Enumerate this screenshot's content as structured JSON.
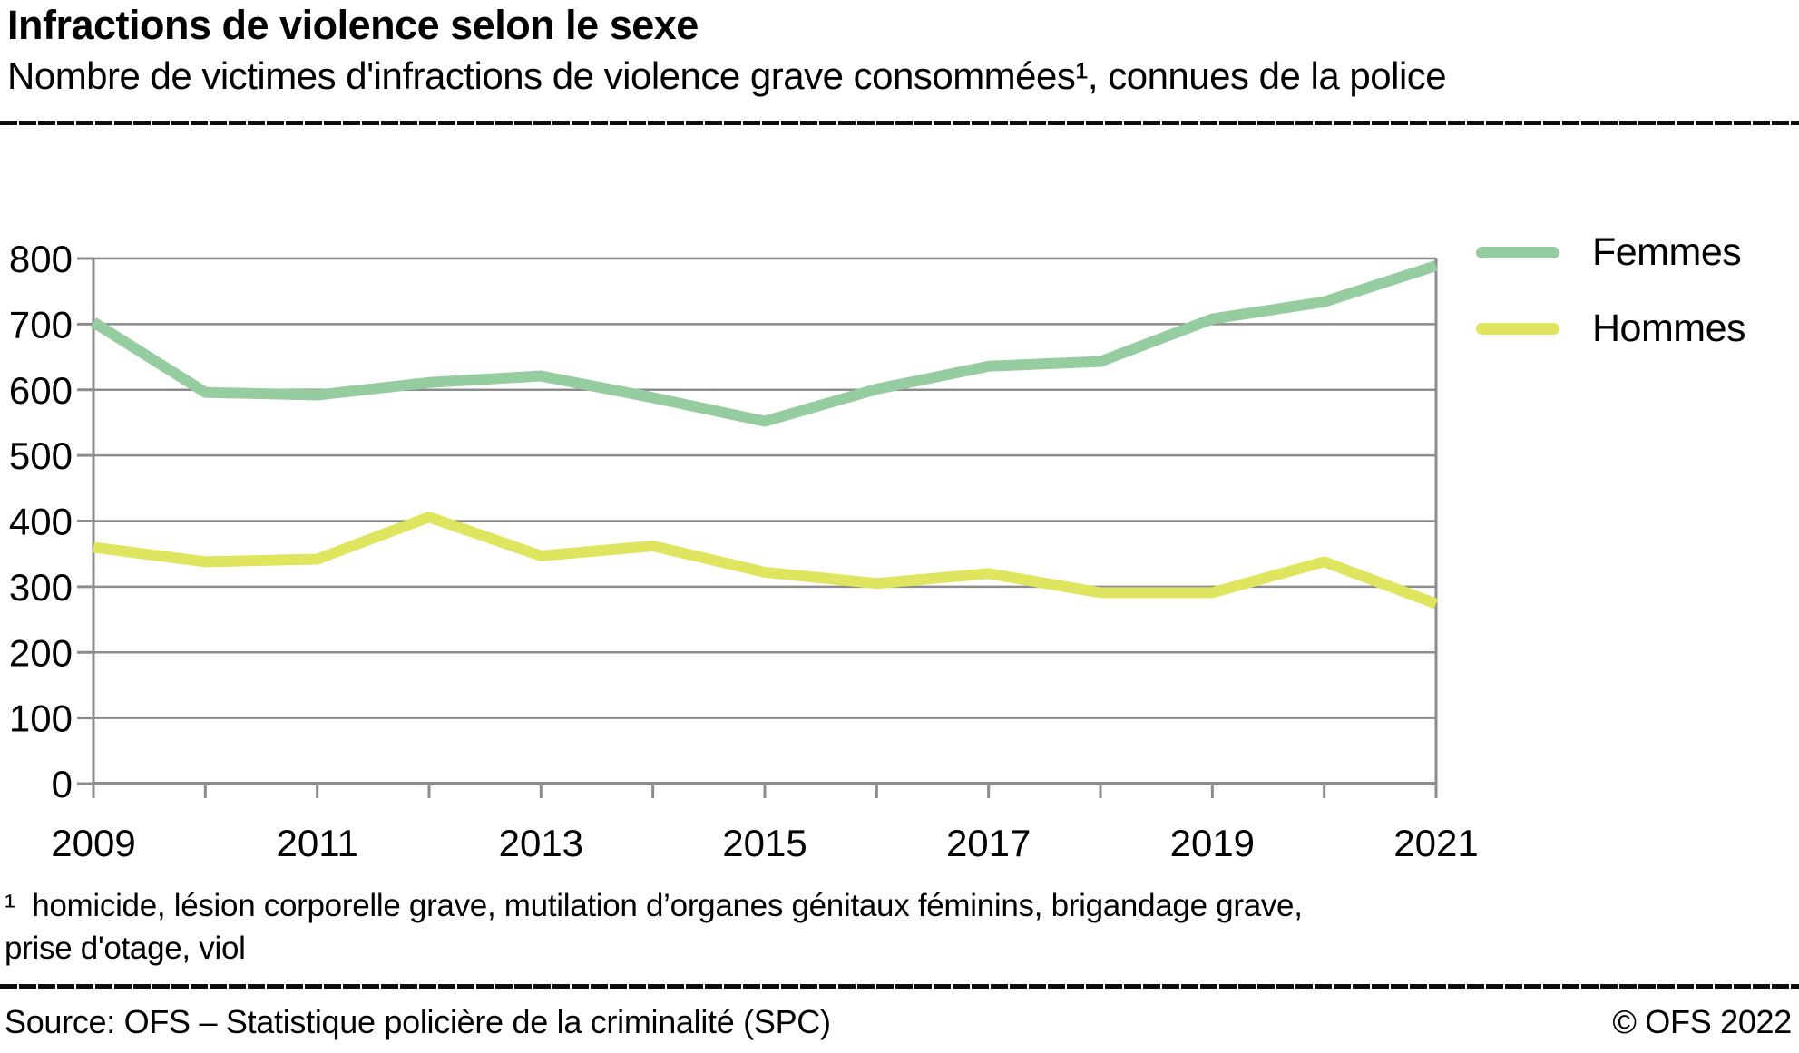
{
  "header": {
    "title": "Infractions de violence selon le sexe",
    "subtitle": "Nombre de victimes d'infractions de violence grave consommées¹, connues de la police"
  },
  "chart_data": {
    "type": "line",
    "x": [
      2009,
      2010,
      2011,
      2012,
      2013,
      2014,
      2015,
      2016,
      2017,
      2018,
      2019,
      2020,
      2021
    ],
    "x_tick_labels": [
      "2009",
      "2011",
      "2013",
      "2015",
      "2017",
      "2019",
      "2021"
    ],
    "y_ticks": [
      0,
      100,
      200,
      300,
      400,
      500,
      600,
      700,
      800
    ],
    "ylim": [
      0,
      800
    ],
    "grid": "horizontal",
    "legend_position": "top-right",
    "axis_color": "#8C8C8C",
    "series": [
      {
        "name": "Femmes",
        "color": "#96CDA0",
        "values": [
          703,
          596,
          592,
          611,
          621,
          588,
          552,
          601,
          636,
          643,
          708,
          734,
          789
        ]
      },
      {
        "name": "Hommes",
        "color": "#DFE55F",
        "values": [
          360,
          338,
          342,
          406,
          347,
          362,
          322,
          305,
          320,
          291,
          291,
          338,
          274
        ]
      }
    ],
    "xlabel": "",
    "ylabel": ""
  },
  "footnote": {
    "lines": [
      "¹  homicide, lésion corporelle grave, mutilation d’organes génitaux féminins, brigandage grave,",
      "prise d'otage, viol"
    ]
  },
  "footer": {
    "source": "Source: OFS – Statistique policière de la criminalité (SPC)",
    "copyright": "© OFS 2022"
  }
}
